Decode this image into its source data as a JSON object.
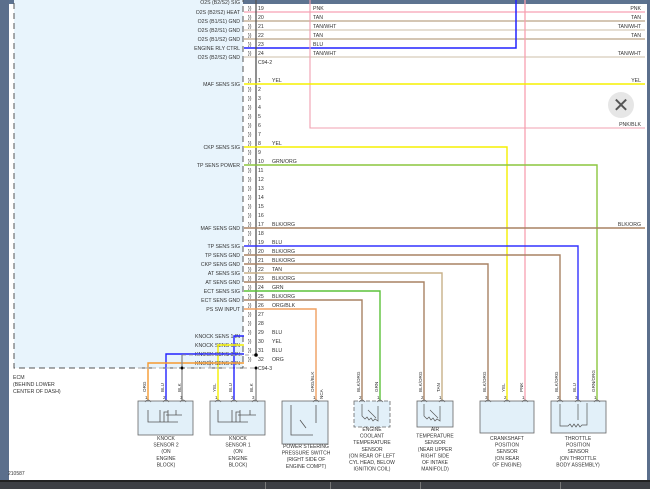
{
  "ecm": {
    "label_lines": [
      "ECM",
      "(BEHIND LOWER",
      "CENTER OF DASH)"
    ],
    "connector_a": "C94-2",
    "connector_b": "C94-3",
    "cut_label": "O2S (B2/S2) SIG",
    "pins_a": [
      {
        "pin": "19",
        "name": "O2S (B2/S2) HEAT",
        "wire": "PNK",
        "color": "#f48aa0"
      },
      {
        "pin": "20",
        "name": "O2S (B1/S1) GND",
        "wire": "TAN",
        "color": "#a88c6a"
      },
      {
        "pin": "21",
        "name": "O2S (B2/S1) GND",
        "wire": "TAN/WHT",
        "color": "#cdbfa8"
      },
      {
        "pin": "22",
        "name": "O2S (B1/S2) GND",
        "wire": "TAN",
        "color": "#a88c6a"
      },
      {
        "pin": "23",
        "name": "ENGINE RLY CTRL",
        "wire": "BLU",
        "color": "#2222ff"
      },
      {
        "pin": "24",
        "name": "O2S (B2/S2) GND",
        "wire": "TAN/WHT",
        "color": "#cdbfa8"
      }
    ],
    "pins_b": [
      {
        "pin": "1",
        "name": "MAF SENS SIG",
        "wire": "YEL",
        "color": "#f5f000"
      },
      {
        "pin": "2",
        "name": "",
        "wire": "",
        "color": ""
      },
      {
        "pin": "3",
        "name": "",
        "wire": "",
        "color": ""
      },
      {
        "pin": "4",
        "name": "",
        "wire": "",
        "color": ""
      },
      {
        "pin": "5",
        "name": "",
        "wire": "",
        "color": ""
      },
      {
        "pin": "6",
        "name": "",
        "wire": "",
        "color": ""
      },
      {
        "pin": "7",
        "name": "",
        "wire": "",
        "color": ""
      },
      {
        "pin": "8",
        "name": "CKP SENS SIG",
        "wire": "YEL",
        "color": "#f5f000"
      },
      {
        "pin": "9",
        "name": "",
        "wire": "",
        "color": ""
      },
      {
        "pin": "10",
        "name": "TP SENS POWER",
        "wire": "GRN/ORG",
        "color": "#8cc63f"
      },
      {
        "pin": "11",
        "name": "",
        "wire": "",
        "color": ""
      },
      {
        "pin": "12",
        "name": "",
        "wire": "",
        "color": ""
      },
      {
        "pin": "13",
        "name": "",
        "wire": "",
        "color": ""
      },
      {
        "pin": "14",
        "name": "",
        "wire": "",
        "color": ""
      },
      {
        "pin": "15",
        "name": "",
        "wire": "",
        "color": ""
      },
      {
        "pin": "16",
        "name": "",
        "wire": "",
        "color": ""
      },
      {
        "pin": "17",
        "name": "MAF SENS GND",
        "wire": "BLK/ORG",
        "color": "#a88263"
      },
      {
        "pin": "18",
        "name": "",
        "wire": "",
        "color": ""
      },
      {
        "pin": "19",
        "name": "TP SENS SIG",
        "wire": "BLU",
        "color": "#3333ff"
      },
      {
        "pin": "20",
        "name": "TP SENS GND",
        "wire": "BLK/ORG",
        "color": "#a88263"
      },
      {
        "pin": "21",
        "name": "CKP SENS GND",
        "wire": "BLK/ORG",
        "color": "#a88263"
      },
      {
        "pin": "22",
        "name": "AT SENS SIG",
        "wire": "TAN",
        "color": "#c8b088"
      },
      {
        "pin": "23",
        "name": "AT SENS GND",
        "wire": "BLK/ORG",
        "color": "#a88263"
      },
      {
        "pin": "24",
        "name": "ECT SENS SIG",
        "wire": "GRN",
        "color": "#5cc23a"
      },
      {
        "pin": "25",
        "name": "ECT SENS GND",
        "wire": "BLK/ORG",
        "color": "#a88263"
      },
      {
        "pin": "26",
        "name": "PS SW INPUT",
        "wire": "ORG/BLK",
        "color": "#f0a060"
      },
      {
        "pin": "27",
        "name": "",
        "wire": "",
        "color": ""
      },
      {
        "pin": "28",
        "name": "",
        "wire": "",
        "color": ""
      },
      {
        "pin": "29",
        "name": "KNOCK SENS 1 IN",
        "wire": "BLU",
        "color": "#2222ff"
      },
      {
        "pin": "30",
        "name": "KNOCK SENS 1 IN",
        "wire": "YEL",
        "color": "#f5f000"
      },
      {
        "pin": "31",
        "name": "KNOCK SENS 2 IN",
        "wire": "BLU",
        "color": "#2222ff"
      },
      {
        "pin": "32",
        "name": "KNOCK SENS 2 IN",
        "wire": "ORG",
        "color": "#f59a30"
      }
    ]
  },
  "right_labels": [
    "PNK",
    "TAN",
    "TAN/WHT",
    "TAN",
    "TAN/WHT",
    "YEL",
    "PNK/BLK",
    "BLK/ORG"
  ],
  "pnk_blk_color": "#f0a0b0",
  "components": [
    {
      "id": "knock-sensor-2",
      "label_lines": [
        "KNOCK",
        "SENSOR 2",
        "(ON",
        "ENGINE",
        "BLOCK)"
      ],
      "pins": [
        {
          "n": "1",
          "wire": "ORG"
        },
        {
          "n": "2",
          "wire": "BLU"
        },
        {
          "n": "3",
          "wire": "BLK"
        }
      ]
    },
    {
      "id": "knock-sensor-1",
      "label_lines": [
        "KNOCK",
        "SENSOR 1",
        "(ON",
        "ENGINE",
        "BLOCK)"
      ],
      "pins": [
        {
          "n": "1",
          "wire": "YEL"
        },
        {
          "n": "2",
          "wire": "BLU"
        },
        {
          "n": "3",
          "wire": "BLK"
        }
      ]
    },
    {
      "id": "power-steering-pressure-switch",
      "label_lines": [
        "POWER STEERING",
        "PRESSURE SWITCH",
        "(RIGHT SIDE OF",
        "ENGINE COMPT)"
      ],
      "pins": [
        {
          "n": "1",
          "wire": "ORG/BLK"
        }
      ],
      "pin_tag": "NCA"
    },
    {
      "id": "engine-coolant-temperature-sensor",
      "label_lines": [
        "ENGINE",
        "COOLANT",
        "TEMPERATURE",
        "SENSOR",
        "(ON REAR OF LEFT",
        "CYL HEAD, BELOW",
        "IGNITION COIL)"
      ],
      "pins": [
        {
          "n": "2",
          "wire": "BLK/ORG"
        },
        {
          "n": "1",
          "wire": "GRN"
        }
      ]
    },
    {
      "id": "air-temperature-sensor",
      "label_lines": [
        "AIR",
        "TEMPERATURE",
        "SENSOR",
        "(NEAR UPPER",
        "RIGHT SIDE",
        "OF INTAKE",
        "MANIFOLD)"
      ],
      "pins": [
        {
          "n": "2",
          "wire": "BLK/ORG"
        },
        {
          "n": "1",
          "wire": "TAN"
        }
      ]
    },
    {
      "id": "crankshaft-position-sensor",
      "label_lines": [
        "CRANKSHAFT",
        "POSITION",
        "SENSOR",
        "(ON REAR",
        "OF ENGINE)"
      ],
      "pins": [
        {
          "n": "3",
          "wire": "BLK/ORG"
        },
        {
          "n": "2",
          "wire": "YEL"
        },
        {
          "n": "1",
          "wire": "PNK"
        }
      ]
    },
    {
      "id": "throttle-position-sensor",
      "label_lines": [
        "THROTTLE",
        "POSITION",
        "SENSOR",
        "(ON THROTTLE",
        "BODY ASSEMBLY)"
      ],
      "pins": [
        {
          "n": "2",
          "wire": "BLK/ORG"
        },
        {
          "n": "3",
          "wire": "BLU"
        },
        {
          "n": "1",
          "wire": "GRN/ORG"
        }
      ]
    }
  ],
  "figure_id": "210587",
  "close_icon": "close-x"
}
